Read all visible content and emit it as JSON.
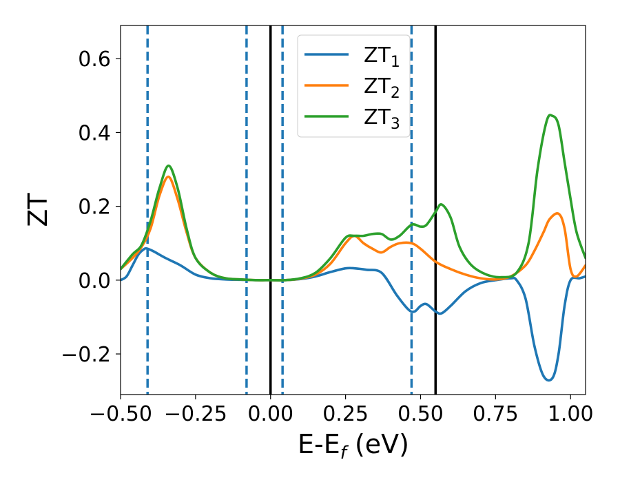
{
  "chart_data": {
    "type": "line",
    "xlabel_main": "E-E",
    "xlabel_sub": "f",
    "xlabel_unit": " (eV)",
    "ylabel": "ZT",
    "xlim": [
      -0.5,
      1.05
    ],
    "ylim": [
      -0.31,
      0.69
    ],
    "xticks": [
      -0.5,
      -0.25,
      0.0,
      0.25,
      0.5,
      0.75,
      1.0
    ],
    "xtick_labels": [
      "−0.50",
      "−0.25",
      "0.00",
      "0.25",
      "0.50",
      "0.75",
      "1.00"
    ],
    "yticks": [
      -0.2,
      0.0,
      0.2,
      0.4,
      0.6
    ],
    "ytick_labels": [
      "−0.2",
      "0.0",
      "0.2",
      "0.4",
      "0.6"
    ],
    "legend_position": "top-center",
    "vlines_dashed": [
      -0.41,
      -0.08,
      0.04,
      0.47
    ],
    "vlines_solid": [
      0.0,
      0.55
    ],
    "series": [
      {
        "name": "ZT",
        "sub": "1",
        "color": "#1f77b4",
        "x": [
          -0.5,
          -0.48,
          -0.46,
          -0.44,
          -0.42,
          -0.41,
          -0.39,
          -0.35,
          -0.3,
          -0.25,
          -0.2,
          -0.15,
          -0.1,
          -0.05,
          0.0,
          0.05,
          0.1,
          0.15,
          0.2,
          0.25,
          0.28,
          0.32,
          0.37,
          0.42,
          0.46,
          0.48,
          0.5,
          0.52,
          0.55,
          0.57,
          0.6,
          0.65,
          0.7,
          0.75,
          0.8,
          0.82,
          0.85,
          0.88,
          0.91,
          0.94,
          0.96,
          0.98,
          1.0,
          1.03,
          1.05
        ],
        "y": [
          0.0,
          0.01,
          0.04,
          0.07,
          0.085,
          0.085,
          0.078,
          0.06,
          0.04,
          0.015,
          0.005,
          0.002,
          0.001,
          0.0,
          0.0,
          0.0,
          0.003,
          0.01,
          0.022,
          0.032,
          0.032,
          0.028,
          0.02,
          -0.04,
          -0.08,
          -0.085,
          -0.07,
          -0.065,
          -0.085,
          -0.09,
          -0.07,
          -0.03,
          -0.008,
          0.0,
          0.005,
          0.0,
          -0.05,
          -0.18,
          -0.26,
          -0.265,
          -0.2,
          -0.07,
          0.0,
          0.005,
          0.01
        ]
      },
      {
        "name": "ZT",
        "sub": "2",
        "color": "#ff7f0e",
        "x": [
          -0.5,
          -0.46,
          -0.43,
          -0.4,
          -0.37,
          -0.34,
          -0.31,
          -0.28,
          -0.25,
          -0.2,
          -0.15,
          -0.1,
          -0.05,
          0.0,
          0.05,
          0.1,
          0.15,
          0.2,
          0.25,
          0.28,
          0.31,
          0.34,
          0.37,
          0.4,
          0.43,
          0.47,
          0.5,
          0.55,
          0.6,
          0.65,
          0.7,
          0.75,
          0.8,
          0.85,
          0.88,
          0.91,
          0.93,
          0.96,
          0.98,
          1.0,
          1.02,
          1.05
        ],
        "y": [
          0.03,
          0.06,
          0.09,
          0.14,
          0.23,
          0.28,
          0.22,
          0.13,
          0.06,
          0.02,
          0.005,
          0.002,
          0.0,
          0.0,
          0.0,
          0.004,
          0.015,
          0.045,
          0.1,
          0.12,
          0.1,
          0.085,
          0.075,
          0.09,
          0.1,
          0.1,
          0.085,
          0.05,
          0.03,
          0.015,
          0.005,
          0.002,
          0.01,
          0.04,
          0.08,
          0.13,
          0.165,
          0.18,
          0.14,
          0.03,
          0.01,
          0.04
        ]
      },
      {
        "name": "ZT",
        "sub": "3",
        "color": "#2ca02c",
        "x": [
          -0.5,
          -0.46,
          -0.43,
          -0.4,
          -0.37,
          -0.34,
          -0.31,
          -0.28,
          -0.25,
          -0.2,
          -0.15,
          -0.1,
          -0.05,
          0.0,
          0.05,
          0.1,
          0.15,
          0.2,
          0.25,
          0.28,
          0.31,
          0.34,
          0.37,
          0.4,
          0.43,
          0.47,
          0.5,
          0.52,
          0.55,
          0.57,
          0.6,
          0.63,
          0.67,
          0.72,
          0.77,
          0.82,
          0.86,
          0.89,
          0.92,
          0.94,
          0.96,
          0.98,
          1.0,
          1.02,
          1.05
        ],
        "y": [
          0.03,
          0.07,
          0.095,
          0.16,
          0.25,
          0.31,
          0.25,
          0.14,
          0.06,
          0.02,
          0.005,
          0.002,
          0.0,
          0.0,
          0.0,
          0.005,
          0.02,
          0.06,
          0.115,
          0.12,
          0.12,
          0.125,
          0.125,
          0.11,
          0.12,
          0.15,
          0.145,
          0.15,
          0.185,
          0.205,
          0.17,
          0.09,
          0.04,
          0.015,
          0.008,
          0.02,
          0.1,
          0.3,
          0.43,
          0.445,
          0.42,
          0.32,
          0.22,
          0.13,
          0.06
        ]
      }
    ]
  }
}
